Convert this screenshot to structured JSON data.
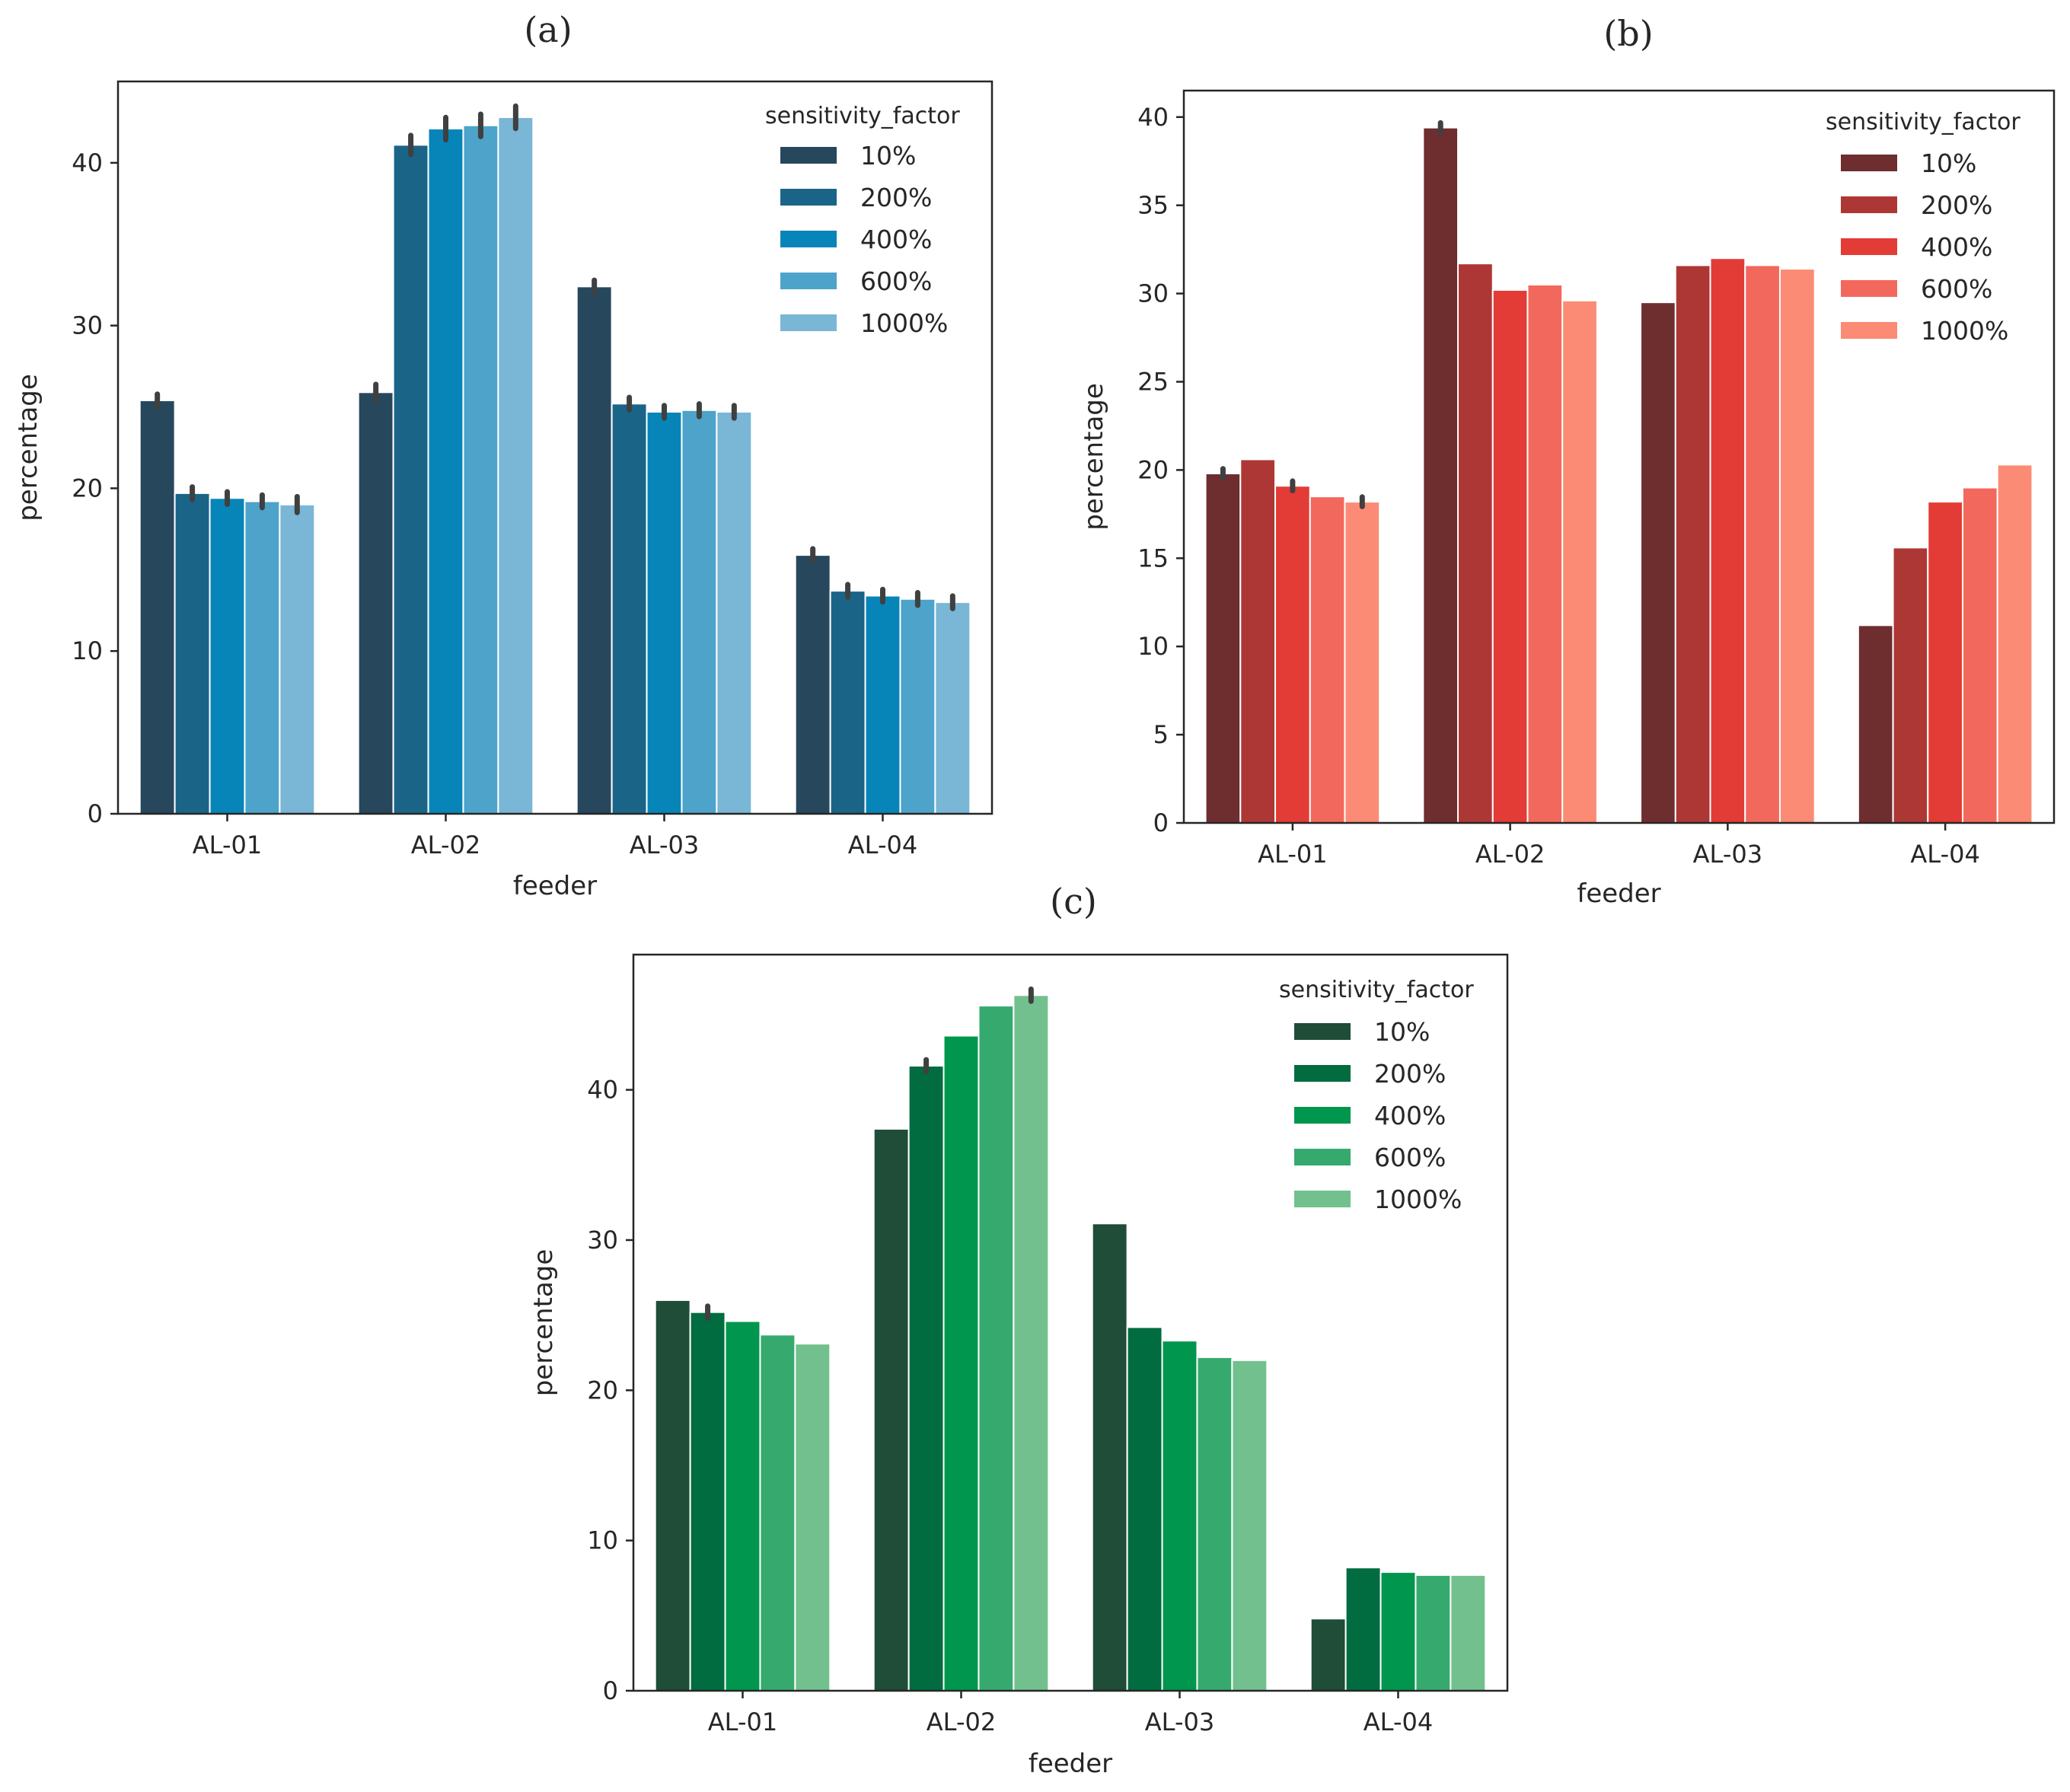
{
  "colors": {
    "a": [
      "#27475d",
      "#1a6488",
      "#0785b8",
      "#4da3ca",
      "#7ab6d5"
    ],
    "b": [
      "#6e2d2f",
      "#ad3734",
      "#e33b35",
      "#f3685c",
      "#fb8b74"
    ],
    "c": [
      "#1f4d37",
      "#006c3f",
      "#00964d",
      "#36aa6e",
      "#72c08e"
    ]
  },
  "chart_data": [
    {
      "panel_label": "(a)",
      "type": "bar",
      "xlabel": "feeder",
      "ylabel": "percentage",
      "categories": [
        "AL-01",
        "AL-02",
        "AL-03",
        "AL-04"
      ],
      "ylim": [
        0,
        45
      ],
      "yticks": [
        0,
        10,
        20,
        30,
        40
      ],
      "legend_title": "sensitivity_factor",
      "legend_position": "top-right",
      "grid": false,
      "series": [
        {
          "name": "10%",
          "values": [
            25.4,
            25.9,
            32.4,
            15.9
          ],
          "err": [
            0.2,
            0.3,
            0.2,
            0.2
          ]
        },
        {
          "name": "200%",
          "values": [
            19.7,
            41.1,
            25.2,
            13.7
          ],
          "err": [
            0.2,
            0.4,
            0.2,
            0.2
          ]
        },
        {
          "name": "400%",
          "values": [
            19.4,
            42.1,
            24.7,
            13.4
          ],
          "err": [
            0.2,
            0.5,
            0.2,
            0.2
          ]
        },
        {
          "name": "600%",
          "values": [
            19.2,
            42.3,
            24.8,
            13.2
          ],
          "err": [
            0.2,
            0.5,
            0.2,
            0.2
          ]
        },
        {
          "name": "1000%",
          "values": [
            19.0,
            42.8,
            24.7,
            13.0
          ],
          "err": [
            0.3,
            0.5,
            0.2,
            0.2
          ]
        }
      ]
    },
    {
      "panel_label": "(b)",
      "type": "bar",
      "xlabel": "feeder",
      "ylabel": "percentage",
      "categories": [
        "AL-01",
        "AL-02",
        "AL-03",
        "AL-04"
      ],
      "ylim": [
        0,
        41.5
      ],
      "yticks": [
        0,
        5,
        10,
        15,
        20,
        25,
        30,
        35,
        40
      ],
      "legend_title": "sensitivity_factor",
      "legend_position": "top-right",
      "grid": false,
      "series": [
        {
          "name": "10%",
          "values": [
            19.8,
            39.4,
            29.5,
            11.2
          ],
          "err": [
            0.1,
            0.1,
            0,
            0
          ]
        },
        {
          "name": "200%",
          "values": [
            20.6,
            31.7,
            31.6,
            15.6
          ],
          "err": [
            0,
            0,
            0,
            0
          ]
        },
        {
          "name": "400%",
          "values": [
            19.1,
            30.2,
            32.0,
            18.2
          ],
          "err": [
            0.1,
            0,
            0,
            0
          ]
        },
        {
          "name": "600%",
          "values": [
            18.5,
            30.5,
            31.6,
            19.0
          ],
          "err": [
            0,
            0,
            0,
            0
          ]
        },
        {
          "name": "1000%",
          "values": [
            18.2,
            29.6,
            31.4,
            20.3
          ],
          "err": [
            0.1,
            0,
            0,
            0
          ]
        }
      ]
    },
    {
      "panel_label": "(c)",
      "type": "bar",
      "xlabel": "feeder",
      "ylabel": "percentage",
      "categories": [
        "AL-01",
        "AL-02",
        "AL-03",
        "AL-04"
      ],
      "ylim": [
        0,
        49
      ],
      "yticks": [
        0,
        10,
        20,
        30,
        40
      ],
      "legend_title": "sensitivity_factor",
      "legend_position": "top-right",
      "grid": false,
      "series": [
        {
          "name": "10%",
          "values": [
            26.0,
            37.4,
            31.1,
            4.8
          ],
          "err": [
            0,
            0,
            0,
            0
          ]
        },
        {
          "name": "200%",
          "values": [
            25.2,
            41.6,
            24.2,
            8.2
          ],
          "err": [
            0.2,
            0.2,
            0,
            0
          ]
        },
        {
          "name": "400%",
          "values": [
            24.6,
            43.6,
            23.3,
            7.9
          ],
          "err": [
            0,
            0,
            0,
            0
          ]
        },
        {
          "name": "600%",
          "values": [
            23.7,
            45.6,
            22.2,
            7.7
          ],
          "err": [
            0,
            0,
            0,
            0
          ]
        },
        {
          "name": "1000%",
          "values": [
            23.1,
            46.3,
            22.0,
            7.7
          ],
          "err": [
            0,
            0.2,
            0,
            0
          ]
        }
      ]
    }
  ]
}
